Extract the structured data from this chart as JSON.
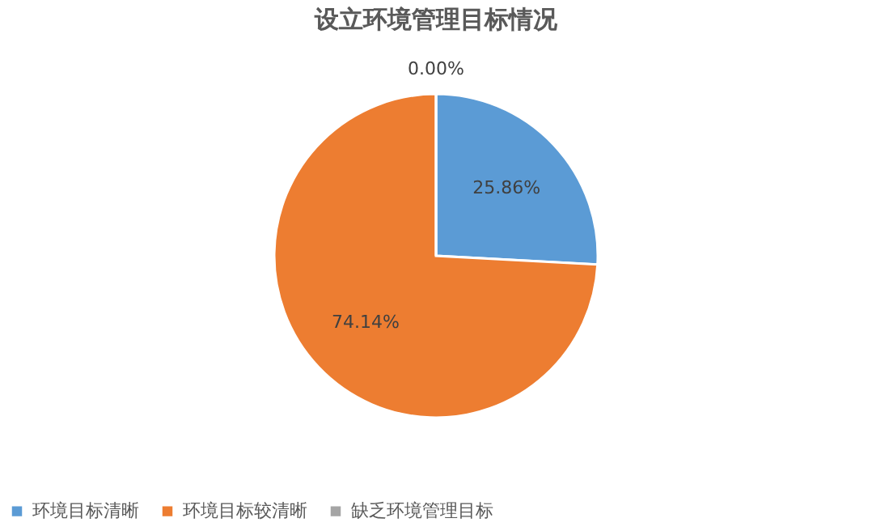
{
  "chart_data": {
    "type": "pie",
    "title": "设立环境管理目标情况",
    "categories": [
      "环境目标清晰",
      "环境目标较清晰",
      "缺乏环境管理目标"
    ],
    "values": [
      25.86,
      74.14,
      0.0
    ],
    "colors": [
      "#5b9bd5",
      "#ed7d31",
      "#a5a5a5"
    ],
    "value_labels": [
      "25.86%",
      "74.14%",
      "0.00%"
    ],
    "legend": "bottom"
  }
}
